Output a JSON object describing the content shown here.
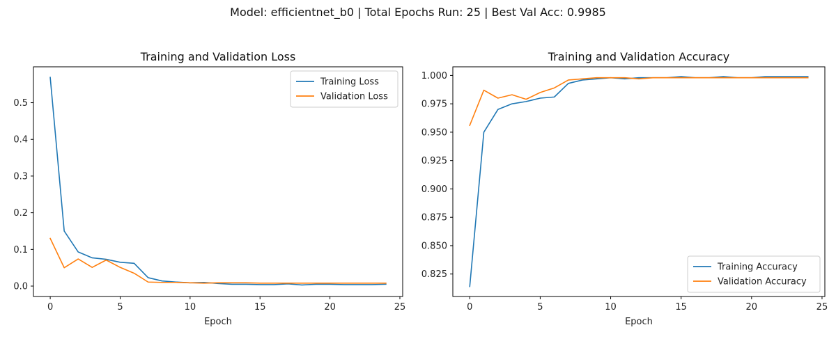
{
  "figure": {
    "suptitle": "Model: efficientnet_b0 | Total Epochs Run: 25 | Best Val Acc: 0.9985"
  },
  "colors": {
    "training": "#1f77b4",
    "validation": "#ff7f0e"
  },
  "chart_data": [
    {
      "type": "line",
      "title": "Training and Validation Loss",
      "xlabel": "Epoch",
      "ylabel": "",
      "xlim": [
        -1.2,
        25.2
      ],
      "ylim": [
        -0.0284,
        0.5978
      ],
      "xticks": [
        0,
        5,
        10,
        15,
        20,
        25
      ],
      "yticks": [
        0.0,
        0.1,
        0.2,
        0.3,
        0.4,
        0.5
      ],
      "ytick_labels": [
        "0.0",
        "0.1",
        "0.2",
        "0.3",
        "0.4",
        "0.5"
      ],
      "grid": false,
      "legend_position": "top-right",
      "x": [
        0,
        1,
        2,
        3,
        4,
        5,
        6,
        7,
        8,
        9,
        10,
        11,
        12,
        13,
        14,
        15,
        16,
        17,
        18,
        19,
        20,
        21,
        22,
        23,
        24
      ],
      "series": [
        {
          "name": "Training Loss",
          "color": "#1f77b4",
          "values": [
            0.569,
            0.15,
            0.093,
            0.077,
            0.073,
            0.065,
            0.062,
            0.023,
            0.014,
            0.011,
            0.009,
            0.01,
            0.007,
            0.005,
            0.005,
            0.004,
            0.004,
            0.006,
            0.003,
            0.005,
            0.005,
            0.004,
            0.004,
            0.004,
            0.005
          ]
        },
        {
          "name": "Validation Loss",
          "color": "#ff7f0e",
          "values": [
            0.13,
            0.05,
            0.074,
            0.051,
            0.071,
            0.051,
            0.035,
            0.011,
            0.01,
            0.01,
            0.009,
            0.008,
            0.009,
            0.009,
            0.009,
            0.008,
            0.008,
            0.008,
            0.008,
            0.008,
            0.008,
            0.008,
            0.008,
            0.008,
            0.008
          ]
        }
      ]
    },
    {
      "type": "line",
      "title": "Training and Validation Accuracy",
      "xlabel": "Epoch",
      "ylabel": "",
      "xlim": [
        -1.2,
        25.2
      ],
      "ylim": [
        0.8052,
        1.0076
      ],
      "xticks": [
        0,
        5,
        10,
        15,
        20,
        25
      ],
      "yticks": [
        0.825,
        0.85,
        0.875,
        0.9,
        0.925,
        0.95,
        0.975,
        1.0
      ],
      "ytick_labels": [
        "0.825",
        "0.850",
        "0.875",
        "0.900",
        "0.925",
        "0.950",
        "0.975",
        "1.000"
      ],
      "grid": false,
      "legend_position": "bottom-right",
      "x": [
        0,
        1,
        2,
        3,
        4,
        5,
        6,
        7,
        8,
        9,
        10,
        11,
        12,
        13,
        14,
        15,
        16,
        17,
        18,
        19,
        20,
        21,
        22,
        23,
        24
      ],
      "series": [
        {
          "name": "Training Accuracy",
          "color": "#1f77b4",
          "values": [
            0.814,
            0.95,
            0.97,
            0.975,
            0.977,
            0.98,
            0.981,
            0.993,
            0.996,
            0.997,
            0.998,
            0.997,
            0.998,
            0.998,
            0.998,
            0.999,
            0.998,
            0.998,
            0.999,
            0.998,
            0.998,
            0.999,
            0.999,
            0.999,
            0.999
          ]
        },
        {
          "name": "Validation Accuracy",
          "color": "#ff7f0e",
          "values": [
            0.956,
            0.987,
            0.98,
            0.983,
            0.979,
            0.985,
            0.989,
            0.996,
            0.997,
            0.998,
            0.998,
            0.998,
            0.997,
            0.998,
            0.998,
            0.998,
            0.998,
            0.998,
            0.998,
            0.998,
            0.998,
            0.998,
            0.998,
            0.998,
            0.998
          ]
        }
      ]
    }
  ]
}
